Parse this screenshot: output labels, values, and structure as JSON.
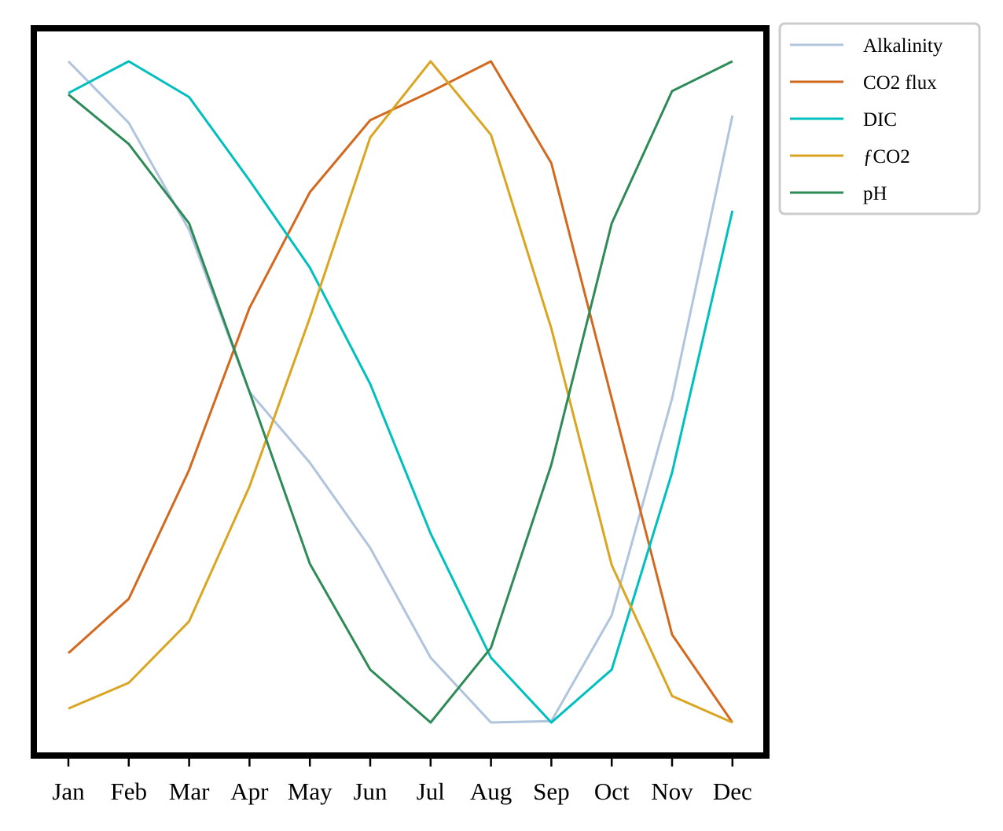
{
  "chart_data": {
    "type": "line",
    "categories": [
      "Jan",
      "Feb",
      "Mar",
      "Apr",
      "May",
      "Jun",
      "Jul",
      "Aug",
      "Sep",
      "Oct",
      "Nov",
      "Dec"
    ],
    "title": "",
    "xlabel": "",
    "ylabel": "",
    "y_axis_shown": false,
    "ylim": [
      -0.05,
      1.05
    ],
    "grid": false,
    "legend_position": "outside-top-right",
    "series": [
      {
        "name": "Alkalinity",
        "color": "#b0c4de",
        "values": [
          1.0,
          0.907,
          0.745,
          0.5,
          0.393,
          0.264,
          0.098,
          0.0,
          0.002,
          0.162,
          0.49,
          0.918
        ]
      },
      {
        "name": "CO2 flux",
        "color": "#d2691e",
        "values": [
          0.105,
          0.187,
          0.382,
          0.627,
          0.802,
          0.911,
          0.954,
          1.0,
          0.846,
          0.49,
          0.133,
          0.0
        ]
      },
      {
        "name": "DIC",
        "color": "#00bfbf",
        "values": [
          0.952,
          1.0,
          0.946,
          0.82,
          0.688,
          0.512,
          0.286,
          0.098,
          0.0,
          0.08,
          0.378,
          0.774
        ]
      },
      {
        "name": "ƒCO2",
        "color": "#daa520",
        "values": [
          0.021,
          0.06,
          0.153,
          0.357,
          0.612,
          0.885,
          1.0,
          0.889,
          0.596,
          0.238,
          0.04,
          0.0
        ]
      },
      {
        "name": "pH",
        "color": "#2e8b57",
        "values": [
          0.95,
          0.875,
          0.755,
          0.5,
          0.24,
          0.08,
          0.0,
          0.113,
          0.39,
          0.755,
          0.955,
          1.0
        ]
      }
    ]
  }
}
